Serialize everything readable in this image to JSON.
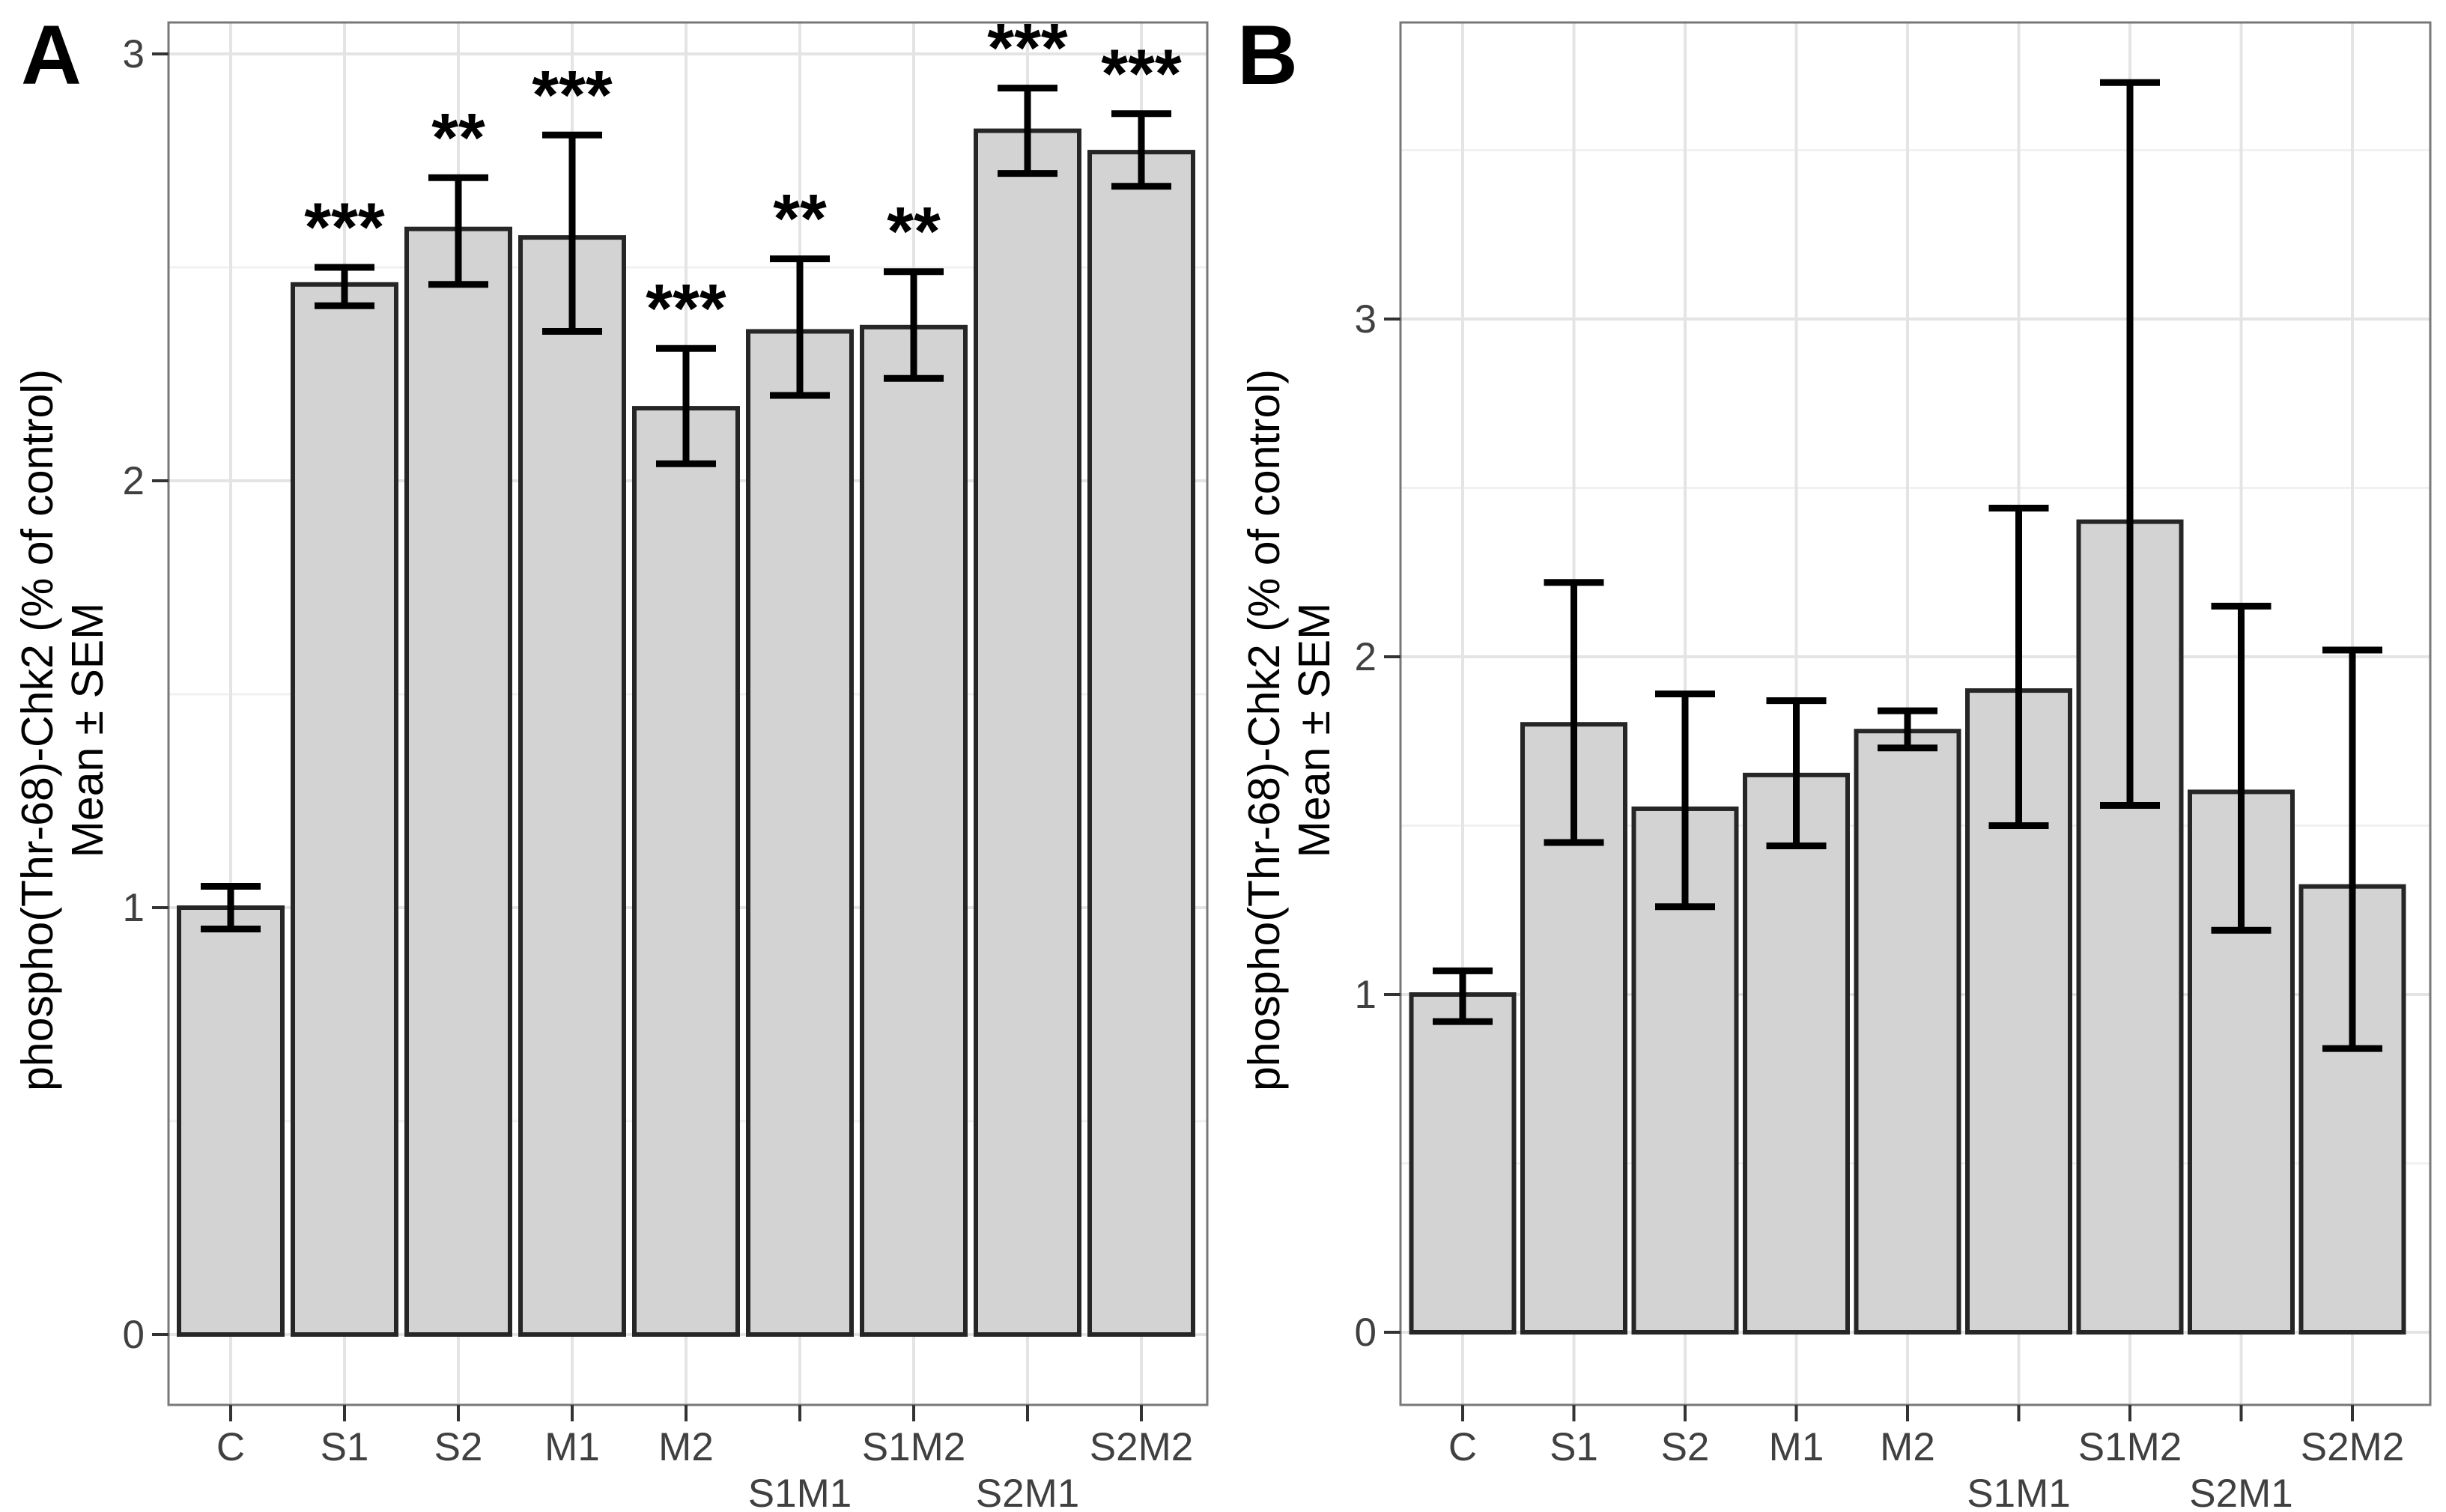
{
  "figure": {
    "background": "#ffffff",
    "bar_fill": "#d3d3d3",
    "bar_stroke": "#262626",
    "error_color": "#000000",
    "grid_major_color": "#e4e4e4",
    "grid_minor_color": "#f1f1f1",
    "panel_border_color": "#787878",
    "tick_color": "#333333",
    "tick_label_color": "#404040",
    "sig_color": "#000000"
  },
  "chart_data": [
    {
      "panel_letter": "A",
      "type": "bar",
      "title": "",
      "ylabel_line1": "phospho(Thr-68)-Chk2 (% of control)",
      "ylabel_line2": "Mean ± SEM",
      "categories": [
        "C",
        "S1",
        "S2",
        "M1",
        "M2",
        "S1M1",
        "S1M2",
        "S2M1",
        "S2M2"
      ],
      "values": [
        1.0,
        2.46,
        2.59,
        2.57,
        2.17,
        2.35,
        2.36,
        2.82,
        2.77
      ],
      "error_low": [
        0.95,
        2.41,
        2.46,
        2.35,
        2.04,
        2.2,
        2.24,
        2.72,
        2.69
      ],
      "error_high": [
        1.05,
        2.5,
        2.71,
        2.81,
        2.31,
        2.52,
        2.49,
        2.92,
        2.86
      ],
      "significance": [
        "",
        "***",
        "**",
        "***",
        "***",
        "**",
        "**",
        "***",
        "***"
      ],
      "yticks": [
        0,
        1,
        2,
        3
      ],
      "ytick_labels": [
        "0",
        "1",
        "2",
        "3"
      ],
      "ylim": [
        0,
        3.07
      ],
      "grid": "on",
      "legend": "none",
      "error_bars": "SEM"
    },
    {
      "panel_letter": "B",
      "type": "bar",
      "title": "",
      "ylabel_line1": "phospho(Thr-68)-Chk2 (% of control)",
      "ylabel_line2": "Mean ± SEM",
      "categories": [
        "C",
        "S1",
        "S2",
        "M1",
        "M2",
        "S1M1",
        "S1M2",
        "S2M1",
        "S2M2"
      ],
      "values": [
        1.0,
        1.8,
        1.55,
        1.65,
        1.78,
        1.9,
        2.4,
        1.6,
        1.32
      ],
      "error_low": [
        0.92,
        1.45,
        1.26,
        1.44,
        1.73,
        1.5,
        1.56,
        1.19,
        0.84
      ],
      "error_high": [
        1.07,
        2.22,
        1.89,
        1.87,
        1.84,
        2.44,
        3.7,
        2.15,
        2.02
      ],
      "significance": [
        "",
        "",
        "",
        "",
        "",
        "",
        "",
        "",
        ""
      ],
      "yticks": [
        0,
        1,
        2,
        3
      ],
      "ytick_labels": [
        "0",
        "1",
        "2",
        "3"
      ],
      "ylim": [
        0,
        3.88
      ],
      "grid": "on",
      "legend": "none",
      "error_bars": "SEM"
    }
  ]
}
